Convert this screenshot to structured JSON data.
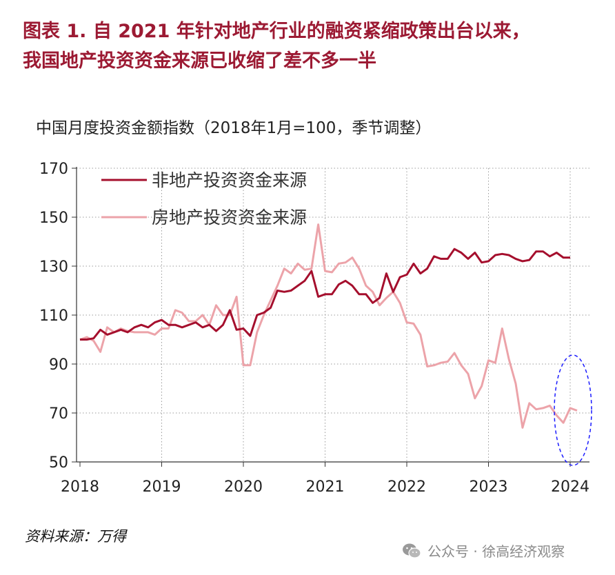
{
  "title_line1": "图表 1.   自 2021 年针对地产行业的融资紧缩政策出台以来，",
  "title_line2": "我国地产投资资金来源已收缩了差不多一半",
  "chart_data": {
    "type": "line",
    "subtitle": "中国月度投资金额指数（2018年1月=100，季节调整）",
    "ylim": [
      50,
      170
    ],
    "yticks": [
      50,
      70,
      90,
      110,
      130,
      150,
      170
    ],
    "xticks": [
      "2018",
      "2019",
      "2020",
      "2021",
      "2022",
      "2023",
      "2024"
    ],
    "grid": true,
    "legend_position": "top-left",
    "series": [
      {
        "name": "非地产投资资金来源",
        "color": "#a50f2d",
        "start": "2018-01",
        "values": [
          100,
          100,
          100.5,
          104,
          102,
          103,
          104,
          103,
          105,
          106,
          105,
          107,
          108,
          106,
          106,
          105,
          106,
          107,
          105,
          106,
          103.5,
          106,
          112,
          104,
          104.5,
          101.5,
          110,
          111,
          113,
          120,
          119.5,
          120,
          122,
          124,
          128,
          117.5,
          118.5,
          118.5,
          122.5,
          124,
          122,
          118.5,
          118.5,
          115,
          117,
          127,
          119.5,
          125.5,
          126.5,
          131,
          127,
          129,
          134,
          133,
          133,
          137,
          135.5,
          133,
          135.5,
          131.5,
          132,
          134.5,
          135,
          134.5,
          133,
          132,
          132.5,
          136,
          136,
          134,
          135.5,
          133.5,
          133.5
        ]
      },
      {
        "name": "房地产投资资金来源",
        "color": "#eca3a9",
        "start": "2018-01",
        "values": [
          100,
          101,
          99.5,
          95,
          105,
          103,
          104.5,
          103.5,
          103,
          103,
          103,
          102,
          104.5,
          104.5,
          112,
          111,
          107.5,
          107.5,
          110,
          106,
          114,
          110,
          110,
          117.5,
          89.5,
          89.5,
          103,
          110,
          116,
          122,
          129,
          127,
          131,
          128.5,
          129,
          147,
          128,
          127.5,
          131,
          131.5,
          133.5,
          129,
          122,
          119.5,
          114,
          117,
          119.5,
          115,
          107,
          106.5,
          102,
          89,
          89.5,
          90.5,
          91,
          94.5,
          89.5,
          86,
          76,
          81,
          91.5,
          90.5,
          104.5,
          92,
          82,
          64,
          74,
          71.5,
          72,
          73,
          69,
          66,
          72,
          71
        ]
      }
    ],
    "annotation": "dashed-blue-ellipse-2024"
  },
  "source": "资料来源：万得",
  "watermark": "公众号 · 徐高经济观察"
}
